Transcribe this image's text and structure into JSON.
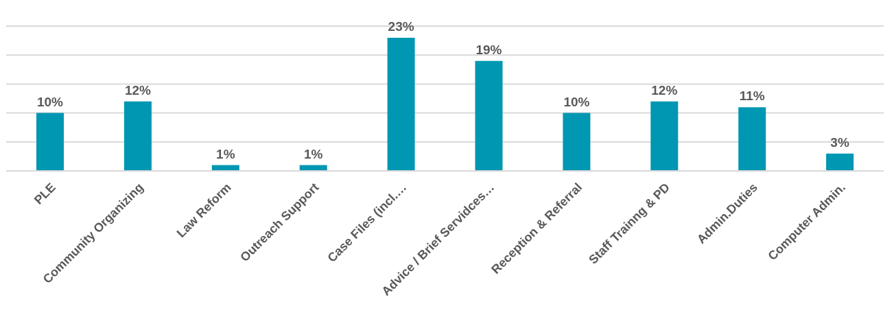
{
  "chart_data": {
    "type": "bar",
    "categories": [
      "PLE",
      "Community Organizing",
      "Law Reform",
      "Outreach Support",
      "Case Files (incl.…",
      "Advice / Brief Servidces…",
      "Reception & Referral",
      "Staff Trainng & PD",
      "Admin.Duties",
      "Computer Admin."
    ],
    "values": [
      10,
      12,
      1,
      1,
      23,
      19,
      10,
      12,
      11,
      3
    ],
    "value_labels": [
      "10%",
      "12%",
      "1%",
      "1%",
      "23%",
      "19%",
      "10%",
      "12%",
      "11%",
      "3%"
    ],
    "color": "#0097b2",
    "ylim": [
      0,
      25
    ],
    "yticks": [
      {
        "value": 0,
        "label": null
      },
      {
        "value": 5,
        "label": null
      },
      {
        "value": 10,
        "label": null
      },
      {
        "value": 15,
        "label": null
      },
      {
        "value": 20,
        "label": null
      },
      {
        "value": 25,
        "label": null
      }
    ],
    "tick_labels": "x",
    "grid": "y"
  }
}
